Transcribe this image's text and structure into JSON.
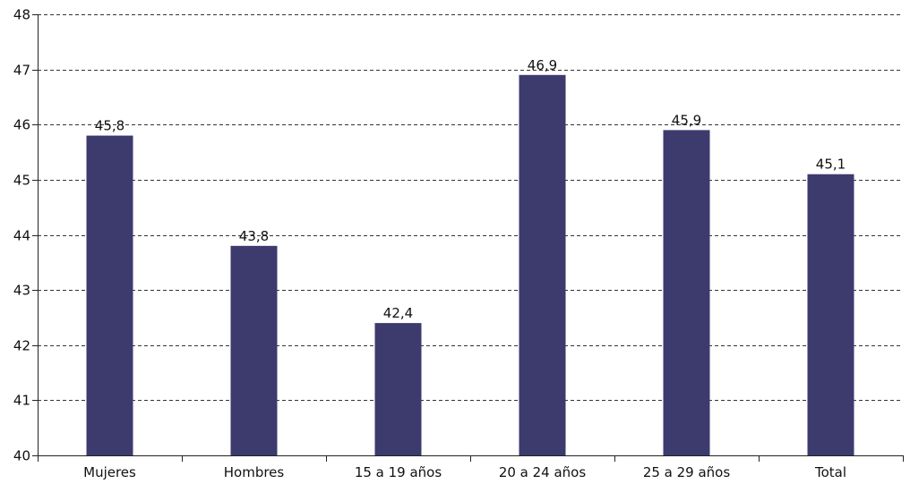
{
  "chart_data": {
    "type": "bar",
    "categories": [
      "Mujeres",
      "Hombres",
      "15 a 19 años",
      "20 a 24 años",
      "25 a 29 años",
      "Total"
    ],
    "values": [
      45.8,
      43.8,
      42.4,
      46.9,
      45.9,
      45.1
    ],
    "value_labels": [
      "45,8",
      "43,8",
      "42,4",
      "46,9",
      "45,9",
      "45,1"
    ],
    "y_ticks": [
      40,
      41,
      42,
      43,
      44,
      45,
      46,
      47,
      48
    ],
    "ylim": [
      40,
      48
    ],
    "bar_color": "#3d3a6e",
    "grid": true,
    "grid_style": "dashed",
    "legend": "none",
    "title": "",
    "xlabel": "",
    "ylabel": ""
  }
}
